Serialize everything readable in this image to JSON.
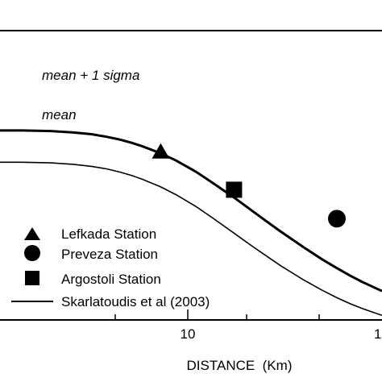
{
  "chart_data": {
    "type": "line",
    "xlabel": "DISTANCE  (Km)",
    "xscale": "log",
    "xlim": [
      2.4,
      110
    ],
    "ylim": [
      0,
      1
    ],
    "tick_labels": [
      "10",
      "1"
    ],
    "curve_labels": [
      "mean + 1 sigma",
      "mean"
    ],
    "series": [
      {
        "name": "mean + 1 sigma",
        "x": [
          2.4,
          3,
          4,
          5,
          6,
          7,
          8,
          9,
          10,
          12,
          14,
          17,
          20,
          25,
          30,
          35,
          40,
          50,
          60,
          70,
          80,
          90,
          100,
          110
        ],
        "y": [
          0.655,
          0.655,
          0.653,
          0.648,
          0.642,
          0.633,
          0.623,
          0.612,
          0.6,
          0.576,
          0.551,
          0.513,
          0.476,
          0.423,
          0.377,
          0.338,
          0.305,
          0.252,
          0.211,
          0.179,
          0.153,
          0.132,
          0.115,
          0.1
        ]
      },
      {
        "name": "mean",
        "x": [
          2.4,
          3,
          4,
          5,
          6,
          7,
          8,
          9,
          10,
          12,
          14,
          17,
          20,
          25,
          30,
          35,
          40,
          50,
          60,
          70,
          80,
          90,
          100,
          110
        ],
        "y": [
          0.545,
          0.545,
          0.543,
          0.538,
          0.531,
          0.522,
          0.511,
          0.499,
          0.486,
          0.46,
          0.433,
          0.393,
          0.355,
          0.3,
          0.255,
          0.218,
          0.187,
          0.139,
          0.104,
          0.077,
          0.056,
          0.04,
          0.027,
          0.016
        ]
      }
    ],
    "stations": [
      {
        "name": "Lefkada Station",
        "marker": "triangle",
        "x": 12,
        "y": 0.58
      },
      {
        "name": "Argostoli Station",
        "marker": "square",
        "x": 25,
        "y": 0.45
      },
      {
        "name": "Preveza Station",
        "marker": "circle",
        "x": 70,
        "y": 0.35
      }
    ],
    "legend": {
      "placement": "bottom-left",
      "entries": [
        {
          "label": "Lefkada Station",
          "marker": "triangle"
        },
        {
          "label": "Preveza Station",
          "marker": "circle"
        },
        {
          "label": "Argostoli Station",
          "marker": "square"
        },
        {
          "label": "Skarlatoudis et al (2003)",
          "marker": "line"
        }
      ]
    },
    "grid": false
  }
}
